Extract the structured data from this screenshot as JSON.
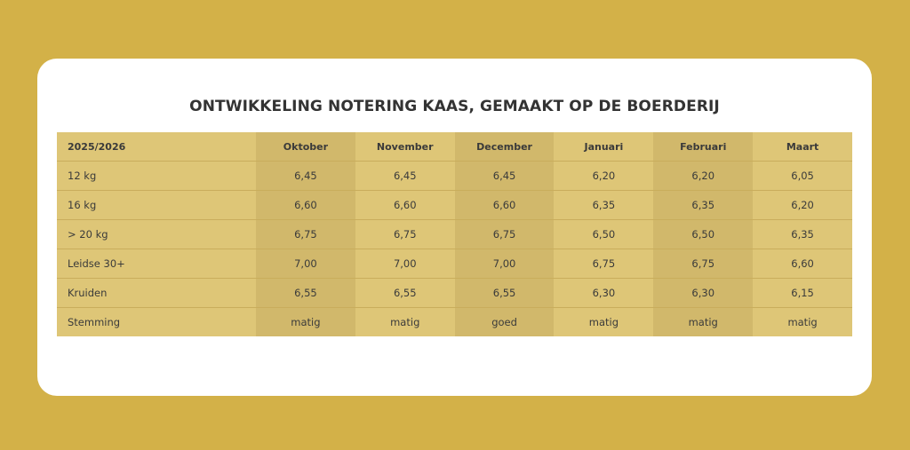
{
  "title": "ONTWIKKELING NOTERING KAAS, GEMAAKT OP DE BOERDERIJ",
  "table": {
    "header": [
      "2025/2026",
      "Oktober",
      "November",
      "December",
      "Januari",
      "Februari",
      "Maart"
    ],
    "rows": [
      [
        "12 kg",
        "6,45",
        "6,45",
        "6,45",
        "6,20",
        "6,20",
        "6,05"
      ],
      [
        "16 kg",
        "6,60",
        "6,60",
        "6,60",
        "6,35",
        "6,35",
        "6,20"
      ],
      [
        "> 20 kg",
        "6,75",
        "6,75",
        "6,75",
        "6,50",
        "6,50",
        "6,35"
      ],
      [
        "Leidse 30+",
        "7,00",
        "7,00",
        "7,00",
        "6,75",
        "6,75",
        "6,60"
      ],
      [
        "Kruiden",
        "6,55",
        "6,55",
        "6,55",
        "6,30",
        "6,30",
        "6,15"
      ],
      [
        "Stemming",
        "matig",
        "matig",
        "goed",
        "matig",
        "matig",
        "matig"
      ]
    ]
  },
  "colors": {
    "background": "#d3b148",
    "table": "#dec677",
    "shaded_column": "#d1b86b"
  }
}
